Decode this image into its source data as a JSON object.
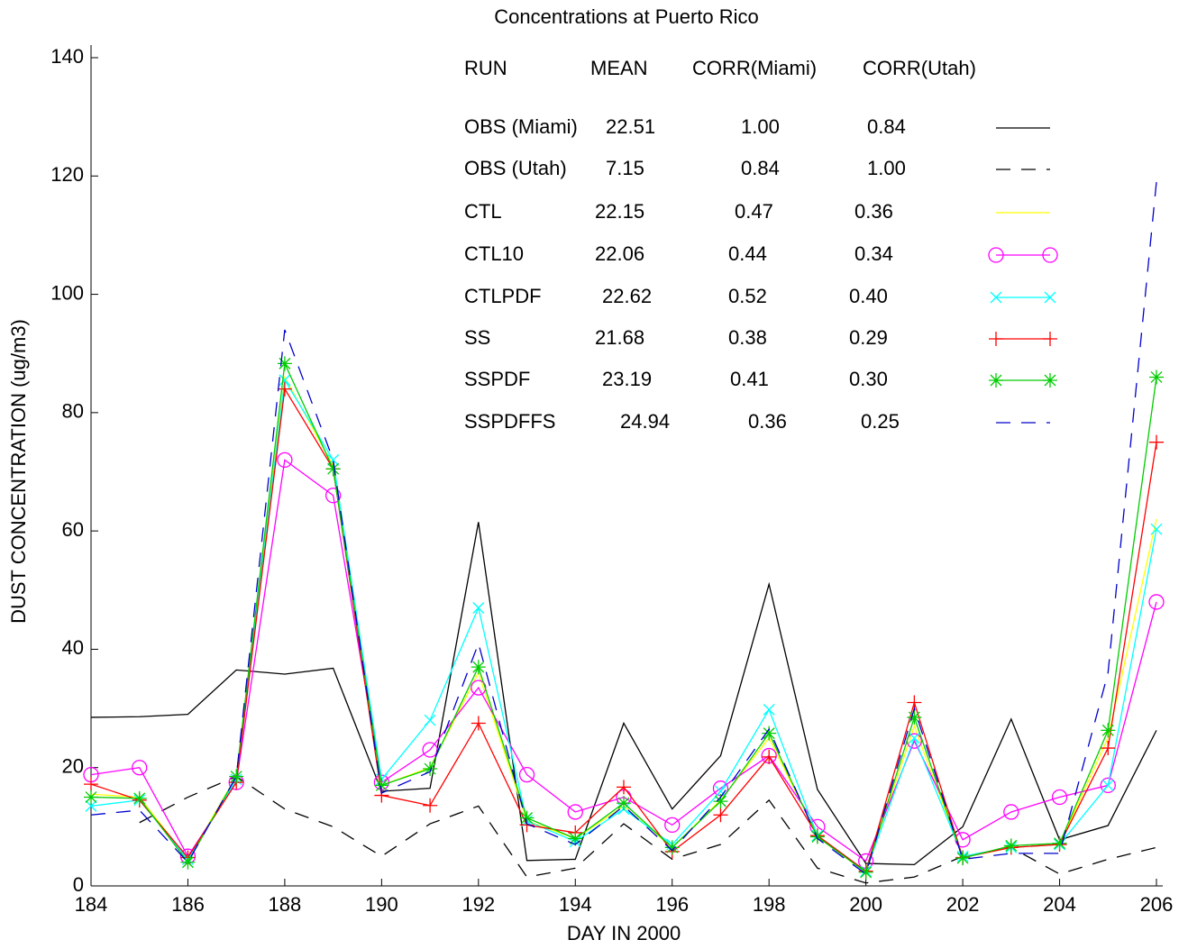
{
  "chart_data": {
    "type": "line",
    "title": "Concentrations at Puerto Rico",
    "xlabel": "DAY IN 2000",
    "ylabel": "DUST CONCENTRATION (ug/m3)",
    "x": [
      184,
      185,
      186,
      187,
      188,
      189,
      190,
      191,
      192,
      193,
      194,
      195,
      196,
      197,
      198,
      199,
      200,
      201,
      202,
      203,
      204,
      205,
      206
    ],
    "xlim": [
      184,
      206
    ],
    "xticks": [
      184,
      186,
      188,
      190,
      192,
      194,
      196,
      198,
      200,
      202,
      204,
      206
    ],
    "ylim": [
      0,
      140
    ],
    "yticks": [
      0,
      20,
      40,
      60,
      80,
      100,
      120,
      140
    ],
    "legend_headers": [
      "RUN",
      "MEAN",
      "CORR(Miami)",
      "CORR(Utah)"
    ],
    "series": [
      {
        "name": "OBS (Miami)",
        "stats": [
          "22.51",
          "1.00",
          "0.84"
        ],
        "color": "#000000",
        "dash": "solid",
        "marker": "none",
        "values": [
          28.5,
          28.6,
          29,
          36.5,
          35.8,
          36.8,
          16,
          16.5,
          61.5,
          4.3,
          4.5,
          27.5,
          13,
          22,
          51,
          16.3,
          3.8,
          3.6,
          10,
          28.2,
          7.8,
          10.2,
          26.3
        ]
      },
      {
        "name": "OBS (Utah)",
        "stats": [
          "7.15",
          "0.84",
          "1.00"
        ],
        "color": "#000000",
        "dash": "dashed",
        "marker": "none",
        "values": [
          null,
          10.7,
          15,
          18.5,
          13,
          10,
          5,
          10.5,
          13.5,
          1.5,
          3,
          10.5,
          4.5,
          7,
          14.5,
          3,
          0.5,
          1.5,
          5,
          6.5,
          2,
          4.5,
          6.5
        ]
      },
      {
        "name": "CTL",
        "stats": [
          "22.15",
          "0.47",
          "0.36"
        ],
        "color": "#ffff00",
        "dash": "solid",
        "marker": "none",
        "values": [
          15.5,
          15,
          4.5,
          18.5,
          86,
          71,
          17,
          20,
          36,
          11,
          8,
          13.5,
          6.5,
          14.5,
          25,
          8.5,
          2.5,
          27,
          4.8,
          6.5,
          7,
          25,
          62
        ]
      },
      {
        "name": "CTL10",
        "stats": [
          "22.06",
          "0.44",
          "0.34"
        ],
        "color": "#ff00ff",
        "dash": "solid",
        "marker": "circle",
        "values": [
          18.8,
          20,
          5,
          17.5,
          72,
          66,
          17.5,
          23,
          33.5,
          18.8,
          12.5,
          15,
          10.3,
          16.5,
          22,
          10,
          4.2,
          24.5,
          7.8,
          12.5,
          15,
          17,
          48
        ]
      },
      {
        "name": "CTLPDF",
        "stats": [
          "22.62",
          "0.52",
          "0.40"
        ],
        "color": "#00ffff",
        "dash": "solid",
        "marker": "x",
        "values": [
          13.5,
          14.5,
          4.5,
          18,
          85.5,
          72,
          18,
          28,
          47,
          11,
          7.5,
          13,
          7,
          16,
          29.8,
          8.5,
          2.5,
          25,
          5,
          6.5,
          7,
          17,
          60.3
        ]
      },
      {
        "name": "SS",
        "stats": [
          "21.68",
          "0.38",
          "0.29"
        ],
        "color": "#ff0000",
        "dash": "solid",
        "marker": "plus",
        "values": [
          17.2,
          14.5,
          4.8,
          17.5,
          84,
          70.5,
          15.3,
          13.6,
          27.5,
          10.3,
          9,
          16.7,
          5.8,
          12,
          21.8,
          8.5,
          2.5,
          31,
          4.8,
          6.5,
          7,
          23.3,
          75
        ]
      },
      {
        "name": "SSPDF",
        "stats": [
          "23.19",
          "0.41",
          "0.30"
        ],
        "color": "#00cc00",
        "dash": "solid",
        "marker": "star",
        "values": [
          15,
          14.8,
          4,
          18.5,
          88.3,
          70.5,
          17,
          19.8,
          37,
          11.5,
          8,
          14,
          6.5,
          14.3,
          25.8,
          8.3,
          2.3,
          28.5,
          4.7,
          6.8,
          7.2,
          26.3,
          86
        ]
      },
      {
        "name": "SSPDFFS",
        "stats": [
          "24.94",
          "0.36",
          "0.25"
        ],
        "color": "#0000cc",
        "dash": "dashed",
        "marker": "none",
        "values": [
          12,
          12.8,
          4,
          18.5,
          94,
          72,
          15.7,
          19.3,
          41,
          10.5,
          7,
          13.5,
          6,
          15,
          26.5,
          8,
          2,
          30,
          4.5,
          5.5,
          5.5,
          36,
          119
        ]
      }
    ]
  }
}
